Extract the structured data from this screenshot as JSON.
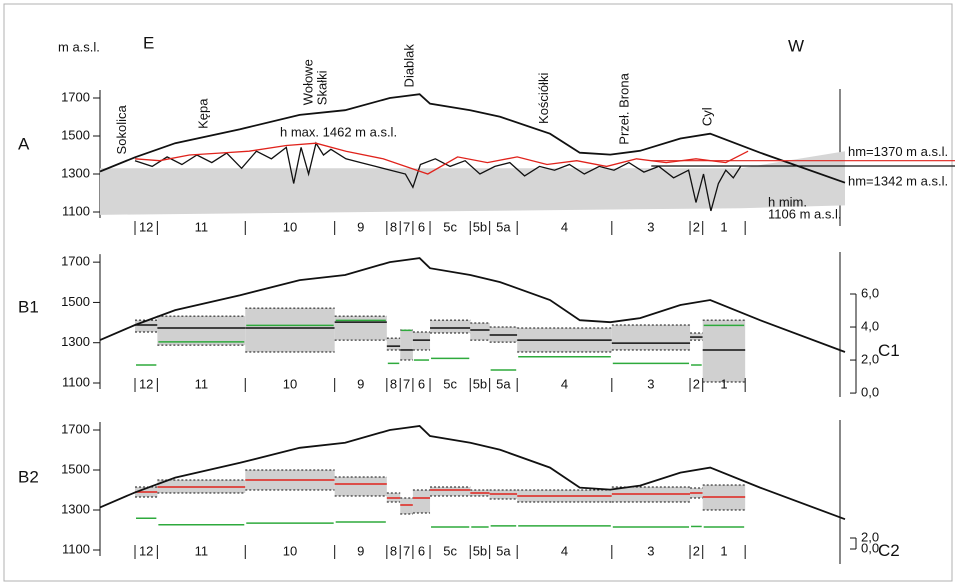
{
  "chart_data": {
    "type": "profile",
    "y_label": "m a.s.l.",
    "east": "E",
    "west": "W",
    "xlim": [
      0,
      100
    ],
    "ylim": [
      1100,
      1800
    ],
    "yticks": [
      1100,
      1300,
      1500,
      1700
    ],
    "segments": [
      "12",
      "11",
      "10",
      "9",
      "8",
      "7",
      "6",
      "5c",
      "5b",
      "5a",
      "4",
      "3",
      "2",
      "1"
    ],
    "segment_edges": [
      4.7,
      7.7,
      19.5,
      31.5,
      38.5,
      40.3,
      42.0,
      44.3,
      49.7,
      52.3,
      56.0,
      68.7,
      79.2,
      80.9,
      86.6
    ],
    "profile": {
      "color": "#111111",
      "x": [
        0,
        4.7,
        10.1,
        18.8,
        26.8,
        32.9,
        38.9,
        40.9,
        42.9,
        44.3,
        49.7,
        53.7,
        60.4,
        64.4,
        68.5,
        72.5,
        77.9,
        81.9,
        88.6,
        100
      ],
      "values": [
        1313,
        1388,
        1462,
        1536,
        1611,
        1636,
        1700,
        1710,
        1720,
        1670,
        1636,
        1601,
        1512,
        1412,
        1402,
        1422,
        1487,
        1512,
        1412,
        1254
      ]
    },
    "panels": [
      {
        "label": "A",
        "peaks": [
          {
            "name": [
              "Sokolica"
            ],
            "x": 3
          },
          {
            "name": [
              "Kępa"
            ],
            "x": 14
          },
          {
            "name": [
              "Wołowe",
              "Skałki"
            ],
            "x": 29
          },
          {
            "name": [
              "Diablak"
            ],
            "x": 41.6
          },
          {
            "name": [
              "Kościółki"
            ],
            "x": 59.7
          },
          {
            "name": [
              "Przeł. Brona"
            ],
            "x": 70.5
          },
          {
            "name": [
              "Cyl"
            ],
            "x": 81.6
          }
        ],
        "shaded": {
          "color": "#d6d6d6",
          "x": [
            0,
            86,
            100
          ],
          "upper": [
            1330,
            1330,
            1420
          ],
          "lower": [
            1085,
            1120,
            1135
          ]
        },
        "detail": {
          "color": "#111111",
          "x": [
            4.7,
            7,
            9,
            11,
            13,
            15,
            17,
            19,
            21,
            23,
            25,
            26,
            27,
            28,
            29,
            30,
            31,
            33,
            35,
            37,
            39,
            41,
            42,
            43,
            45,
            47,
            49,
            51,
            53,
            55,
            57,
            59,
            61,
            63,
            65,
            67,
            69,
            71,
            73,
            75,
            77,
            79,
            80,
            81,
            82,
            83,
            84,
            85,
            86
          ],
          "values": [
            1370,
            1340,
            1390,
            1350,
            1400,
            1360,
            1410,
            1330,
            1420,
            1380,
            1440,
            1250,
            1440,
            1300,
            1462,
            1400,
            1430,
            1380,
            1360,
            1340,
            1320,
            1300,
            1230,
            1350,
            1380,
            1340,
            1370,
            1300,
            1340,
            1360,
            1290,
            1340,
            1320,
            1350,
            1300,
            1340,
            1320,
            1360,
            1310,
            1340,
            1280,
            1320,
            1150,
            1300,
            1106,
            1250,
            1320,
            1280,
            1340
          ]
        },
        "envelope": {
          "color": "#e0231c",
          "x": [
            4.7,
            8,
            12,
            16,
            20,
            25,
            29,
            33,
            38,
            41,
            44,
            48,
            52,
            56,
            60,
            64,
            68,
            72,
            76,
            80,
            84,
            87
          ],
          "values": [
            1380,
            1370,
            1400,
            1410,
            1420,
            1450,
            1462,
            1420,
            1380,
            1340,
            1300,
            1390,
            1360,
            1390,
            1350,
            1370,
            1340,
            1380,
            1360,
            1380,
            1360,
            1420
          ]
        },
        "reference_lines": [
          {
            "value": 1370,
            "color": "#e0231c",
            "label": "hm=1370 m a.s.l."
          },
          {
            "value": 1342,
            "color": "#111111",
            "label": "hm=1342 m a.s.l."
          }
        ],
        "annotations": [
          "h max. 1462 m a.s.l.",
          "h mim.",
          "1106 m a.s.l."
        ]
      },
      {
        "label": "B1",
        "axis2_label": "C1",
        "y2lim": [
          0.61,
          9.15
        ],
        "y2ticks": [
          {
            "value": 0,
            "label": "0,0"
          },
          {
            "value": 2,
            "label": "2,0"
          },
          {
            "value": 4,
            "label": "4,0"
          },
          {
            "value": 6,
            "label": "6,0"
          }
        ],
        "range": {
          "color": "#d0d0d0",
          "min": [
            1353,
            1288,
            1254,
            1313,
            1264,
            1214,
            1264,
            1348,
            1313,
            1303,
            1254,
            1264,
            1313,
            1105
          ],
          "max": [
            1412,
            1432,
            1472,
            1432,
            1323,
            1363,
            1353,
            1412,
            1398,
            1378,
            1373,
            1388,
            1348,
            1412
          ]
        },
        "mean": {
          "color": "#111111",
          "values": [
            1388,
            1373,
            1373,
            1402,
            1283,
            1264,
            1313,
            1373,
            1363,
            1338,
            1313,
            1298,
            1328,
            1264
          ]
        },
        "index": {
          "color": "#2eaa3c",
          "axis": "y2",
          "values": [
            1.7,
            3.1,
            4.1,
            4.4,
            1.8,
            3.8,
            2.0,
            2.1,
            null,
            1.4,
            2.2,
            1.8,
            1.7,
            4.1
          ]
        }
      },
      {
        "label": "B2",
        "axis2_label": "C2",
        "y2lim": [
          -0.18,
          25.27
        ],
        "y2ticks": [
          {
            "value": 0,
            "label": "0,0"
          },
          {
            "value": 2,
            "label": "2,0"
          }
        ],
        "range": {
          "color": "#d0d0d0",
          "min": [
            1365,
            1385,
            1400,
            1370,
            1340,
            1280,
            1285,
            1370,
            1370,
            1355,
            1340,
            1340,
            1360,
            1300
          ],
          "max": [
            1415,
            1450,
            1500,
            1465,
            1385,
            1360,
            1400,
            1415,
            1400,
            1400,
            1400,
            1415,
            1410,
            1425
          ]
        },
        "mean": {
          "color": "#e0231c",
          "values": [
            1390,
            1415,
            1450,
            1430,
            1360,
            1325,
            1360,
            1400,
            1385,
            1380,
            1370,
            1380,
            1385,
            1365
          ]
        },
        "index": {
          "color": "#2eaa3c",
          "axis": "y2",
          "values": [
            5.6,
            4.4,
            4.7,
            4.9,
            null,
            null,
            null,
            4.0,
            4.0,
            4.2,
            4.2,
            4.0,
            4.1,
            4.0
          ]
        }
      }
    ]
  }
}
